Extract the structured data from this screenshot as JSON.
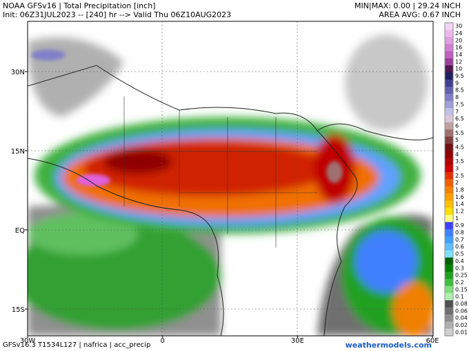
{
  "header": {
    "title": "NOAA GFSv16 | Total Precipitation [inch]",
    "init": "Init: 06Z31JUL2023 -- [240] hr --> Valid Thu 06Z10AUG2023",
    "minmax": "MIN|MAX: 0.00 | 29.24 INCH",
    "area_avg": "AREA AVG: 0.67 INCH"
  },
  "map": {
    "lat_labels": [
      "30N",
      "15N",
      "EQ",
      "15S"
    ],
    "lon_labels": [
      "30W",
      "0",
      "30E",
      "60E"
    ]
  },
  "colorbar": [
    {
      "label": "30",
      "color": "#f4d4f4"
    },
    {
      "label": "24",
      "color": "#ecb8ec"
    },
    {
      "label": "20",
      "color": "#e09ee0"
    },
    {
      "label": "16",
      "color": "#d080d0"
    },
    {
      "label": "14",
      "color": "#c060c0"
    },
    {
      "label": "12",
      "color": "#9a409a"
    },
    {
      "label": "10",
      "color": "#501850"
    },
    {
      "label": "9.5",
      "color": "#202060"
    },
    {
      "label": "9",
      "color": "#404090"
    },
    {
      "label": "8.5",
      "color": "#6060b0"
    },
    {
      "label": "8",
      "color": "#8080c8"
    },
    {
      "label": "7.5",
      "color": "#a0a0d8"
    },
    {
      "label": "7",
      "color": "#c0c0e8"
    },
    {
      "label": "6.5",
      "color": "#d8c8d8"
    },
    {
      "label": "6",
      "color": "#c0a0a0"
    },
    {
      "label": "5.5",
      "color": "#a07070"
    },
    {
      "label": "5",
      "color": "#804040"
    },
    {
      "label": "4.5",
      "color": "#701010"
    },
    {
      "label": "4",
      "color": "#900000"
    },
    {
      "label": "3.5",
      "color": "#b00000"
    },
    {
      "label": "3",
      "color": "#d00000"
    },
    {
      "label": "2.5",
      "color": "#e83000"
    },
    {
      "label": "2",
      "color": "#f06000"
    },
    {
      "label": "1.8",
      "color": "#f88000"
    },
    {
      "label": "1.6",
      "color": "#ffa000"
    },
    {
      "label": "1.4",
      "color": "#ffc000"
    },
    {
      "label": "1.2",
      "color": "#ffe000"
    },
    {
      "label": "1",
      "color": "#ffff80"
    },
    {
      "label": "0.9",
      "color": "#4040ff"
    },
    {
      "label": "0.8",
      "color": "#4080ff"
    },
    {
      "label": "0.7",
      "color": "#40a0ff"
    },
    {
      "label": "0.6",
      "color": "#60c0ff"
    },
    {
      "label": "0.5",
      "color": "#80e0ff"
    },
    {
      "label": "0.4",
      "color": "#006000"
    },
    {
      "label": "0.3",
      "color": "#008000"
    },
    {
      "label": "0.25",
      "color": "#20a020"
    },
    {
      "label": "0.2",
      "color": "#40c040"
    },
    {
      "label": "0.15",
      "color": "#80e080"
    },
    {
      "label": "0.1",
      "color": "#b0f0b0"
    },
    {
      "label": "0.08",
      "color": "#505050"
    },
    {
      "label": "0.06",
      "color": "#707070"
    },
    {
      "label": "0.04",
      "color": "#909090"
    },
    {
      "label": "0.02",
      "color": "#b0b0b0"
    },
    {
      "label": "0.01",
      "color": "#d0d0d0"
    }
  ],
  "footer": {
    "model": "GFSv16.3 T1534L127 | nafrica | acc_precip",
    "site": "weathermodels.com"
  }
}
